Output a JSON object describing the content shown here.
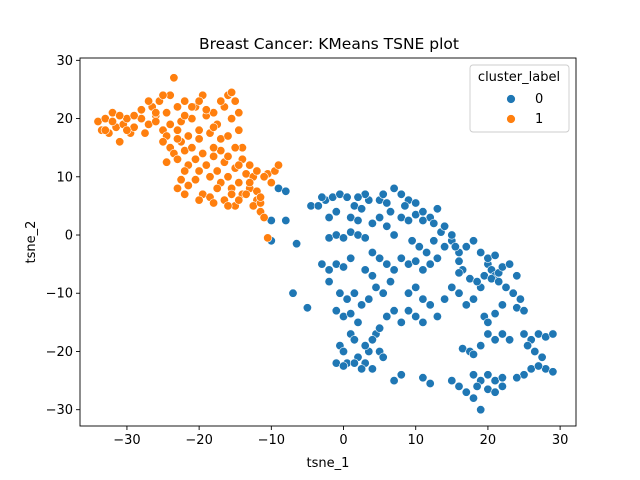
{
  "chart_data": {
    "type": "scatter",
    "title": "Breast Cancer: KMeans TSNE plot",
    "xlabel": "tsne_1",
    "ylabel": "tsne_2",
    "xlim": [
      -36.5,
      32.2
    ],
    "ylim": [
      -32.8,
      30.4
    ],
    "xticks": [
      -30,
      -20,
      -10,
      0,
      10,
      20,
      30
    ],
    "yticks": [
      -30,
      -20,
      -10,
      0,
      10,
      20,
      30
    ],
    "legend": {
      "title": "cluster_label",
      "placement": "upper right"
    },
    "series": [
      {
        "name": "0",
        "color": "#1f77b4",
        "points": [
          [
            -9,
            8
          ],
          [
            -8,
            7.5
          ],
          [
            -10,
            2.5
          ],
          [
            -8,
            2.5
          ],
          [
            -6.5,
            -1.5
          ],
          [
            -7,
            -10
          ],
          [
            -5,
            -12.5
          ],
          [
            -10,
            -1
          ],
          [
            -4.5,
            5
          ],
          [
            -3.5,
            5
          ],
          [
            -2.5,
            6
          ],
          [
            -1.5,
            6.5
          ],
          [
            -0.5,
            7
          ],
          [
            0.5,
            6.5
          ],
          [
            1.5,
            5
          ],
          [
            2.5,
            4.5
          ],
          [
            3.5,
            6
          ],
          [
            5,
            6
          ],
          [
            6,
            5.5
          ],
          [
            7,
            8
          ],
          [
            8,
            7
          ],
          [
            9,
            6
          ],
          [
            10,
            5.5
          ],
          [
            -2,
            -0.5
          ],
          [
            -1,
            0
          ],
          [
            0,
            -0.5
          ],
          [
            1,
            0.5
          ],
          [
            2,
            0
          ],
          [
            3,
            -0.5
          ],
          [
            1,
            3
          ],
          [
            2,
            2.5
          ],
          [
            4,
            2
          ],
          [
            5,
            3
          ],
          [
            6,
            1.5
          ],
          [
            7,
            0
          ],
          [
            8,
            3
          ],
          [
            9,
            2.5
          ],
          [
            10,
            3.5
          ],
          [
            11,
            4
          ],
          [
            12,
            3
          ],
          [
            13,
            4.5
          ],
          [
            -3,
            -5
          ],
          [
            -2,
            -6
          ],
          [
            -1,
            -5
          ],
          [
            0,
            -5.5
          ],
          [
            1,
            -4
          ],
          [
            4,
            -3
          ],
          [
            5,
            -4
          ],
          [
            6,
            -5
          ],
          [
            7,
            -6
          ],
          [
            8,
            -4
          ],
          [
            9,
            -5
          ],
          [
            10,
            -4.5
          ],
          [
            11,
            -6
          ],
          [
            12,
            -5
          ],
          [
            13,
            -4
          ],
          [
            14,
            -2
          ],
          [
            15,
            -1
          ],
          [
            16,
            -3
          ],
          [
            -2,
            -8
          ],
          [
            -0.5,
            -10
          ],
          [
            0.5,
            -11
          ],
          [
            1.5,
            -10
          ],
          [
            2.5,
            -12
          ],
          [
            3.5,
            -11
          ],
          [
            4.5,
            -9
          ],
          [
            5.5,
            -10
          ],
          [
            6.5,
            -8
          ],
          [
            9,
            -10
          ],
          [
            10,
            -9
          ],
          [
            11,
            -11
          ],
          [
            12,
            -12
          ],
          [
            13,
            -14
          ],
          [
            14,
            -11
          ],
          [
            15,
            -9
          ],
          [
            16,
            -10
          ],
          [
            17,
            -12
          ],
          [
            18,
            -11
          ],
          [
            19,
            -9
          ],
          [
            12.5,
            -1
          ],
          [
            13.5,
            0.5
          ],
          [
            14,
            1.5
          ],
          [
            15,
            0
          ],
          [
            15.5,
            -2
          ],
          [
            16.5,
            -6
          ],
          [
            16,
            -6.5
          ],
          [
            17.5,
            -7.5
          ],
          [
            18.5,
            -8
          ],
          [
            19.5,
            -7
          ],
          [
            20,
            -5
          ],
          [
            20.5,
            -6
          ],
          [
            21,
            -7
          ],
          [
            21.5,
            -6.5
          ],
          [
            22,
            -5.5
          ],
          [
            23,
            -5
          ],
          [
            24,
            -7
          ],
          [
            20,
            -4
          ],
          [
            21,
            -3.5
          ],
          [
            -0.5,
            -19
          ],
          [
            0,
            -20
          ],
          [
            0.5,
            -22
          ],
          [
            1,
            -17
          ],
          [
            1.5,
            -18
          ],
          [
            2,
            -21
          ],
          [
            3,
            -22
          ],
          [
            4,
            -23
          ],
          [
            5,
            -20
          ],
          [
            5.5,
            -21
          ],
          [
            4.5,
            -17
          ],
          [
            5,
            -16
          ],
          [
            3.5,
            -20
          ],
          [
            2.5,
            -23
          ],
          [
            1.5,
            -22
          ],
          [
            -1,
            -22
          ],
          [
            0,
            -22.5
          ],
          [
            3,
            -19
          ],
          [
            4,
            -18
          ],
          [
            7,
            -25
          ],
          [
            8,
            -24
          ],
          [
            11,
            -24.5
          ],
          [
            12,
            -25.5
          ],
          [
            15,
            -25
          ],
          [
            16,
            -26
          ],
          [
            17,
            -27
          ],
          [
            18,
            -28
          ],
          [
            19,
            -30
          ],
          [
            16.5,
            -19.5
          ],
          [
            17.5,
            -20
          ],
          [
            18,
            -20.5
          ],
          [
            19,
            -19
          ],
          [
            20,
            -17
          ],
          [
            21,
            -18
          ],
          [
            22,
            -17
          ],
          [
            23,
            -18
          ],
          [
            19.5,
            -14
          ],
          [
            20,
            -15
          ],
          [
            21,
            -13.5
          ],
          [
            22,
            -12
          ],
          [
            24,
            -12.5
          ],
          [
            25,
            -13
          ],
          [
            25,
            -17
          ],
          [
            26,
            -18
          ],
          [
            27,
            -17
          ],
          [
            28,
            -17.5
          ],
          [
            29,
            -17
          ],
          [
            25.5,
            -19
          ],
          [
            26.5,
            -20
          ],
          [
            27.5,
            -21
          ],
          [
            28,
            -23
          ],
          [
            29,
            -23.5
          ],
          [
            26,
            -23
          ],
          [
            27,
            -22.5
          ],
          [
            25,
            -24
          ],
          [
            24,
            -24.5
          ],
          [
            20,
            -24
          ],
          [
            21,
            -25
          ],
          [
            22,
            -26
          ],
          [
            19,
            -25
          ],
          [
            18.5,
            -26
          ],
          [
            20,
            -26.5
          ],
          [
            21,
            -27
          ],
          [
            22,
            -24.5
          ],
          [
            18,
            -24
          ],
          [
            9,
            -13
          ],
          [
            10,
            -14
          ],
          [
            11,
            -15
          ],
          [
            -1,
            -13
          ],
          [
            0,
            -14
          ],
          [
            1,
            -13.5
          ],
          [
            2,
            -15
          ],
          [
            6,
            -14
          ],
          [
            7,
            -13
          ],
          [
            8,
            -15
          ],
          [
            3,
            -6
          ],
          [
            4,
            -7
          ],
          [
            -3,
            6.5
          ],
          [
            5.5,
            7
          ],
          [
            3,
            7
          ],
          [
            2,
            6.5
          ],
          [
            -1,
            4
          ],
          [
            -2,
            3
          ],
          [
            6.5,
            4
          ],
          [
            8.5,
            5
          ],
          [
            11,
            2.5
          ],
          [
            12.5,
            2
          ],
          [
            9.5,
            -1
          ],
          [
            10.5,
            -2
          ],
          [
            11.5,
            -3
          ],
          [
            16,
            -4.5
          ],
          [
            17,
            -2
          ],
          [
            18,
            -1
          ],
          [
            19,
            -3
          ],
          [
            20.5,
            -7.5
          ],
          [
            21.5,
            -8
          ],
          [
            22.5,
            -9
          ],
          [
            23.5,
            -10
          ],
          [
            24.5,
            -11
          ]
        ]
      },
      {
        "name": "1",
        "color": "#ff7f0e",
        "points": [
          [
            -34,
            19.5
          ],
          [
            -33.5,
            18
          ],
          [
            -33,
            20
          ],
          [
            -32.5,
            17.5
          ],
          [
            -32,
            21
          ],
          [
            -31.5,
            18.5
          ],
          [
            -31,
            16
          ],
          [
            -30.5,
            19
          ],
          [
            -30,
            20
          ],
          [
            -29.5,
            17.5
          ],
          [
            -29,
            18.5
          ],
          [
            -28,
            20
          ],
          [
            -27.5,
            17.5
          ],
          [
            -27,
            19
          ],
          [
            -26.5,
            22
          ],
          [
            -26,
            20.5
          ],
          [
            -25.5,
            23
          ],
          [
            -25,
            18
          ],
          [
            -24.5,
            21
          ],
          [
            -24,
            24
          ],
          [
            -23.5,
            27
          ],
          [
            -23,
            22
          ],
          [
            -22.5,
            19.5
          ],
          [
            -22,
            23
          ],
          [
            -21.5,
            17
          ],
          [
            -21,
            20
          ],
          [
            -20.5,
            22
          ],
          [
            -20,
            18
          ],
          [
            -19.5,
            24
          ],
          [
            -19,
            20.5
          ],
          [
            -18.5,
            17.5
          ],
          [
            -18,
            21
          ],
          [
            -17.5,
            19
          ],
          [
            -17,
            16.5
          ],
          [
            -16.5,
            22
          ],
          [
            -16,
            24
          ],
          [
            -15.5,
            20
          ],
          [
            -15,
            23
          ],
          [
            -14.5,
            18
          ],
          [
            -14,
            15
          ],
          [
            -24.5,
            17
          ],
          [
            -24,
            15
          ],
          [
            -23.5,
            14
          ],
          [
            -23,
            13
          ],
          [
            -22.5,
            16
          ],
          [
            -22,
            14.5
          ],
          [
            -21.5,
            12
          ],
          [
            -21,
            15
          ],
          [
            -20.5,
            13
          ],
          [
            -20,
            11
          ],
          [
            -19.5,
            14
          ],
          [
            -19,
            12
          ],
          [
            -18.5,
            10
          ],
          [
            -18,
            13.5
          ],
          [
            -17.5,
            11
          ],
          [
            -17,
            9
          ],
          [
            -16.5,
            12.5
          ],
          [
            -16,
            10
          ],
          [
            -15.5,
            8
          ],
          [
            -15,
            11.5
          ],
          [
            -14.5,
            9
          ],
          [
            -14,
            7
          ],
          [
            -13.5,
            10.5
          ],
          [
            -13,
            8
          ],
          [
            -12.5,
            10
          ],
          [
            -12,
            6
          ],
          [
            -11.5,
            4
          ],
          [
            -11,
            3
          ],
          [
            -10.5,
            10.5
          ],
          [
            -10,
            9
          ],
          [
            -9.5,
            11
          ],
          [
            -9,
            12
          ],
          [
            -22.5,
            9.5
          ],
          [
            -21.5,
            8.5
          ],
          [
            -20.5,
            9.5
          ],
          [
            -19.5,
            7
          ],
          [
            -18.5,
            6.5
          ],
          [
            -17.5,
            8
          ],
          [
            -16.5,
            6
          ],
          [
            -15.5,
            7
          ],
          [
            -15,
            5
          ],
          [
            -14.5,
            6
          ],
          [
            -13.5,
            7
          ],
          [
            -12.5,
            5
          ],
          [
            -11.5,
            5.5
          ],
          [
            -10.5,
            -0.5
          ],
          [
            -23,
            8
          ],
          [
            -22,
            7
          ],
          [
            -20,
            6
          ],
          [
            -18,
            5.5
          ],
          [
            -16,
            5
          ],
          [
            -26,
            21
          ],
          [
            -25,
            24
          ],
          [
            -27,
            23
          ],
          [
            -28,
            21.5
          ],
          [
            -29,
            20.5
          ],
          [
            -30,
            18
          ],
          [
            -31,
            20.5
          ],
          [
            -32,
            19.5
          ],
          [
            -33,
            18
          ],
          [
            -24,
            19
          ],
          [
            -23,
            18
          ],
          [
            -21,
            22
          ],
          [
            -20,
            23
          ],
          [
            -19,
            21.5
          ],
          [
            -18,
            18.5
          ],
          [
            -17,
            14.5
          ],
          [
            -16,
            13.5
          ],
          [
            -15,
            15
          ],
          [
            -14,
            13
          ],
          [
            -13,
            12
          ],
          [
            -12,
            11
          ],
          [
            -11,
            10
          ],
          [
            -24.5,
            12.5
          ],
          [
            -22,
            20.5
          ],
          [
            -25,
            16
          ],
          [
            -26,
            19.5
          ],
          [
            -23,
            16.5
          ],
          [
            -22,
            11
          ],
          [
            -20,
            16.5
          ],
          [
            -18,
            15
          ],
          [
            -16,
            17
          ],
          [
            -14.5,
            12
          ],
          [
            -13,
            9
          ],
          [
            -12,
            7.5
          ],
          [
            -11.5,
            6.5
          ],
          [
            -17,
            23
          ],
          [
            -15.5,
            24.5
          ],
          [
            -14.5,
            21
          ]
        ]
      }
    ]
  }
}
